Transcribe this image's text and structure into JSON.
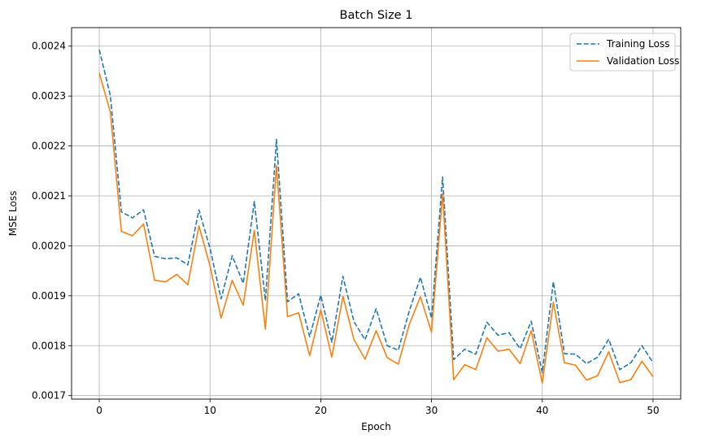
{
  "chart_data": {
    "type": "line",
    "title": "Batch Size 1",
    "xlabel": "Epoch",
    "ylabel": "MSE Loss",
    "xlim": [
      -2.5,
      52.5
    ],
    "ylim": [
      0.001693,
      0.002437
    ],
    "xticks": [
      0,
      10,
      20,
      30,
      40,
      50
    ],
    "xtick_labels": [
      "0",
      "10",
      "20",
      "30",
      "40",
      "50"
    ],
    "yticks": [
      0.0017,
      0.0018,
      0.0019,
      0.002,
      0.0021,
      0.0022,
      0.0023,
      0.0024
    ],
    "ytick_labels": [
      "0.0017",
      "0.0018",
      "0.0019",
      "0.0020",
      "0.0021",
      "0.0022",
      "0.0023",
      "0.0024"
    ],
    "grid": true,
    "legend_position": "top-right",
    "x": [
      0,
      1,
      2,
      3,
      4,
      5,
      6,
      7,
      8,
      9,
      10,
      11,
      12,
      13,
      14,
      15,
      16,
      17,
      18,
      19,
      20,
      21,
      22,
      23,
      24,
      25,
      26,
      27,
      28,
      29,
      30,
      31,
      32,
      33,
      34,
      35,
      36,
      37,
      38,
      39,
      40,
      41,
      42,
      43,
      44,
      45,
      46,
      47,
      48,
      49,
      50
    ],
    "series": [
      {
        "name": "Training Loss",
        "color": "#1f77b4",
        "style": "dashed",
        "values": [
          0.002393,
          0.002301,
          0.002068,
          0.002056,
          0.002072,
          0.001979,
          0.001974,
          0.001976,
          0.001962,
          0.002072,
          0.001995,
          0.001894,
          0.00198,
          0.001925,
          0.002089,
          0.00189,
          0.002213,
          0.001888,
          0.001904,
          0.001818,
          0.001901,
          0.001807,
          0.001939,
          0.001848,
          0.001812,
          0.001874,
          0.0018,
          0.001791,
          0.00187,
          0.001937,
          0.001855,
          0.002138,
          0.001772,
          0.001793,
          0.001783,
          0.001847,
          0.001821,
          0.001826,
          0.001794,
          0.001849,
          0.001746,
          0.001928,
          0.001784,
          0.001783,
          0.001764,
          0.001777,
          0.001813,
          0.001752,
          0.001766,
          0.0018,
          0.001766
        ]
      },
      {
        "name": "Validation Loss",
        "color": "#ff7f0e",
        "style": "solid",
        "values": [
          0.002346,
          0.002268,
          0.002029,
          0.00202,
          0.002044,
          0.001931,
          0.001928,
          0.001943,
          0.001922,
          0.00204,
          0.00196,
          0.001855,
          0.001931,
          0.001881,
          0.002031,
          0.001833,
          0.002161,
          0.001858,
          0.001866,
          0.00178,
          0.001872,
          0.001777,
          0.001899,
          0.001812,
          0.001773,
          0.00183,
          0.001776,
          0.001763,
          0.001843,
          0.001898,
          0.001827,
          0.002105,
          0.001732,
          0.001762,
          0.001752,
          0.001816,
          0.001789,
          0.001793,
          0.001764,
          0.00183,
          0.001725,
          0.001887,
          0.001766,
          0.001761,
          0.001731,
          0.00174,
          0.001788,
          0.001726,
          0.001732,
          0.001769,
          0.001738
        ]
      }
    ]
  }
}
